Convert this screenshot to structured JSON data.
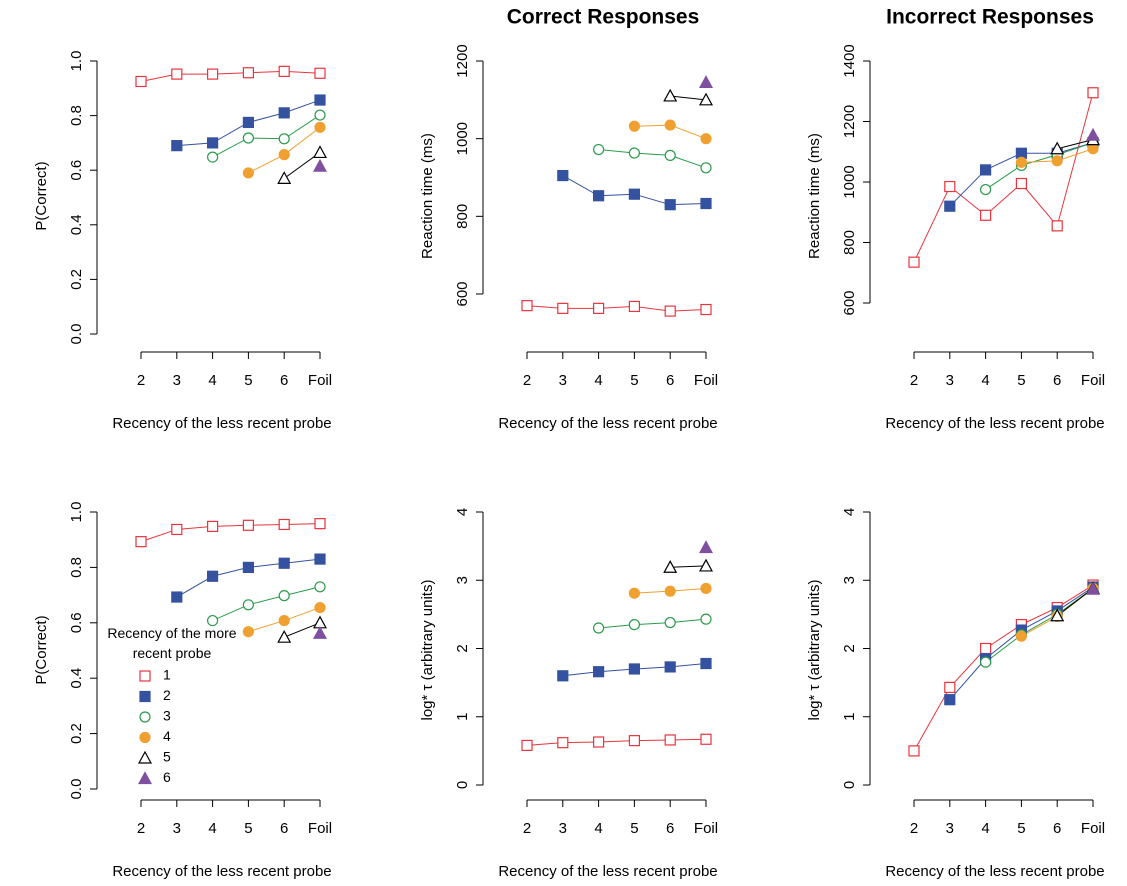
{
  "chart_data": [
    {
      "type": "line",
      "categories": [
        "2",
        "3",
        "4",
        "5",
        "6",
        "Foil"
      ],
      "x_label": "Recency of the less recent probe",
      "y_label": "P(Correct)",
      "ylim": [
        0,
        1
      ],
      "yticks": [
        {
          "value": 0,
          "label": "0.0"
        },
        0.2,
        0.4,
        0.6,
        0.8,
        {
          "value": 1,
          "label": "1.0"
        }
      ],
      "series": [
        {
          "color": "#e8343c",
          "marker": "square",
          "filled": false,
          "values": [
            0.925,
            0.952,
            0.952,
            0.957,
            0.962,
            0.955
          ]
        },
        {
          "color": "#3552a0",
          "marker": "square",
          "filled": true,
          "values": [
            null,
            0.69,
            0.7,
            0.775,
            0.81,
            0.857
          ]
        },
        {
          "color": "#2a9a4a",
          "marker": "circle",
          "filled": false,
          "values": [
            null,
            null,
            0.648,
            0.718,
            0.715,
            0.802
          ]
        },
        {
          "color": "#f0a030",
          "marker": "circle",
          "filled": true,
          "values": [
            null,
            null,
            null,
            0.59,
            0.657,
            0.757
          ]
        },
        {
          "color": "#000000",
          "marker": "triangle",
          "filled": false,
          "values": [
            null,
            null,
            null,
            null,
            0.57,
            0.665
          ]
        },
        {
          "color": "#8050a0",
          "marker": "triangle",
          "filled": true,
          "values": [
            null,
            null,
            null,
            null,
            null,
            0.615
          ]
        }
      ]
    },
    {
      "type": "line",
      "title": "Correct Responses",
      "categories": [
        "2",
        "3",
        "4",
        "5",
        "6",
        "Foil"
      ],
      "x_label": "Recency of the less recent probe",
      "y_label": "Reaction time (ms)",
      "ylim": [
        600,
        1200
      ],
      "yticks": [
        600,
        800,
        1000,
        1200
      ],
      "series": [
        {
          "color": "#e8343c",
          "marker": "square",
          "filled": false,
          "values": [
            570,
            563,
            563,
            568,
            556,
            560
          ]
        },
        {
          "color": "#3552a0",
          "marker": "square",
          "filled": true,
          "values": [
            null,
            905,
            853,
            857,
            830,
            833
          ]
        },
        {
          "color": "#2a9a4a",
          "marker": "circle",
          "filled": false,
          "values": [
            null,
            null,
            972,
            963,
            957,
            925
          ]
        },
        {
          "color": "#f0a030",
          "marker": "circle",
          "filled": true,
          "values": [
            null,
            null,
            null,
            1032,
            1035,
            1000
          ]
        },
        {
          "color": "#000000",
          "marker": "triangle",
          "filled": false,
          "values": [
            null,
            null,
            null,
            null,
            1110,
            1100
          ]
        },
        {
          "color": "#8050a0",
          "marker": "triangle",
          "filled": true,
          "values": [
            null,
            null,
            null,
            null,
            null,
            1145
          ]
        }
      ]
    },
    {
      "type": "line",
      "title": "Incorrect Responses",
      "categories": [
        "2",
        "3",
        "4",
        "5",
        "6",
        "Foil"
      ],
      "x_label": "Recency of the less recent probe",
      "y_label": "Reaction time (ms)",
      "ylim": [
        600,
        1400
      ],
      "yticks": [
        600,
        800,
        1000,
        1200,
        1400
      ],
      "series": [
        {
          "color": "#e8343c",
          "marker": "square",
          "filled": false,
          "values": [
            735,
            985,
            890,
            995,
            855,
            1295
          ]
        },
        {
          "color": "#3552a0",
          "marker": "square",
          "filled": true,
          "values": [
            null,
            920,
            1040,
            1095,
            1095,
            1130
          ]
        },
        {
          "color": "#2a9a4a",
          "marker": "circle",
          "filled": false,
          "values": [
            null,
            null,
            975,
            1055,
            1090,
            1130
          ]
        },
        {
          "color": "#f0a030",
          "marker": "circle",
          "filled": true,
          "values": [
            null,
            null,
            null,
            1065,
            1070,
            1110
          ]
        },
        {
          "color": "#000000",
          "marker": "triangle",
          "filled": false,
          "values": [
            null,
            null,
            null,
            null,
            1110,
            1140
          ]
        },
        {
          "color": "#8050a0",
          "marker": "triangle",
          "filled": true,
          "values": [
            null,
            null,
            null,
            null,
            null,
            1155
          ]
        }
      ]
    },
    {
      "type": "line",
      "categories": [
        "2",
        "3",
        "4",
        "5",
        "6",
        "Foil"
      ],
      "x_label": "Recency of the less recent probe",
      "y_label": "P(Correct)",
      "ylim": [
        0,
        1
      ],
      "yticks": [
        {
          "value": 0,
          "label": "0.0"
        },
        0.2,
        0.4,
        0.6,
        0.8,
        {
          "value": 1,
          "label": "1.0"
        }
      ],
      "legend_title": "Recency of the more recent probe",
      "series": [
        {
          "name": "1",
          "color": "#e8343c",
          "marker": "square",
          "filled": false,
          "values": [
            0.893,
            0.937,
            0.948,
            0.952,
            0.955,
            0.958
          ]
        },
        {
          "name": "2",
          "color": "#3552a0",
          "marker": "square",
          "filled": true,
          "values": [
            null,
            0.693,
            0.768,
            0.8,
            0.815,
            0.83
          ]
        },
        {
          "name": "3",
          "color": "#2a9a4a",
          "marker": "circle",
          "filled": false,
          "values": [
            null,
            null,
            0.608,
            0.665,
            0.698,
            0.73
          ]
        },
        {
          "name": "4",
          "color": "#f0a030",
          "marker": "circle",
          "filled": true,
          "values": [
            null,
            null,
            null,
            0.568,
            0.608,
            0.655
          ]
        },
        {
          "name": "5",
          "color": "#000000",
          "marker": "triangle",
          "filled": false,
          "values": [
            null,
            null,
            null,
            null,
            0.548,
            0.6
          ]
        },
        {
          "name": "6",
          "color": "#8050a0",
          "marker": "triangle",
          "filled": true,
          "values": [
            null,
            null,
            null,
            null,
            null,
            0.562
          ]
        }
      ]
    },
    {
      "type": "line",
      "categories": [
        "2",
        "3",
        "4",
        "5",
        "6",
        "Foil"
      ],
      "x_label": "Recency of the less recent probe",
      "y_label": "log* τ (arbitrary units)",
      "ylim": [
        0,
        4
      ],
      "yticks": [
        0,
        1,
        2,
        3,
        4
      ],
      "series": [
        {
          "color": "#e8343c",
          "marker": "square",
          "filled": false,
          "values": [
            0.58,
            0.62,
            0.63,
            0.65,
            0.66,
            0.67
          ]
        },
        {
          "color": "#3552a0",
          "marker": "square",
          "filled": true,
          "values": [
            null,
            1.6,
            1.66,
            1.7,
            1.73,
            1.78
          ]
        },
        {
          "color": "#2a9a4a",
          "marker": "circle",
          "filled": false,
          "values": [
            null,
            null,
            2.3,
            2.35,
            2.38,
            2.43
          ]
        },
        {
          "color": "#f0a030",
          "marker": "circle",
          "filled": true,
          "values": [
            null,
            null,
            null,
            2.81,
            2.84,
            2.88
          ]
        },
        {
          "color": "#000000",
          "marker": "triangle",
          "filled": false,
          "values": [
            null,
            null,
            null,
            null,
            3.19,
            3.21
          ]
        },
        {
          "color": "#8050a0",
          "marker": "triangle",
          "filled": true,
          "values": [
            null,
            null,
            null,
            null,
            null,
            3.48
          ]
        }
      ]
    },
    {
      "type": "line",
      "categories": [
        "2",
        "3",
        "4",
        "5",
        "6",
        "Foil"
      ],
      "x_label": "Recency of the less recent probe",
      "y_label": "log* τ (arbitrary units)",
      "ylim": [
        0,
        4
      ],
      "yticks": [
        0,
        1,
        2,
        3,
        4
      ],
      "series": [
        {
          "color": "#e8343c",
          "marker": "square",
          "filled": false,
          "values": [
            0.5,
            1.43,
            2.0,
            2.35,
            2.6,
            2.93
          ]
        },
        {
          "color": "#3552a0",
          "marker": "square",
          "filled": true,
          "values": [
            null,
            1.25,
            1.85,
            2.27,
            2.55,
            2.9
          ]
        },
        {
          "color": "#2a9a4a",
          "marker": "circle",
          "filled": false,
          "values": [
            null,
            null,
            1.8,
            2.2,
            2.5,
            2.88
          ]
        },
        {
          "color": "#f0a030",
          "marker": "circle",
          "filled": true,
          "values": [
            null,
            null,
            null,
            2.18,
            2.47,
            2.88
          ]
        },
        {
          "color": "#000000",
          "marker": "triangle",
          "filled": false,
          "values": [
            null,
            null,
            null,
            null,
            2.48,
            2.88
          ]
        },
        {
          "color": "#8050a0",
          "marker": "triangle",
          "filled": true,
          "values": [
            null,
            null,
            null,
            null,
            null,
            2.87
          ]
        }
      ]
    }
  ]
}
